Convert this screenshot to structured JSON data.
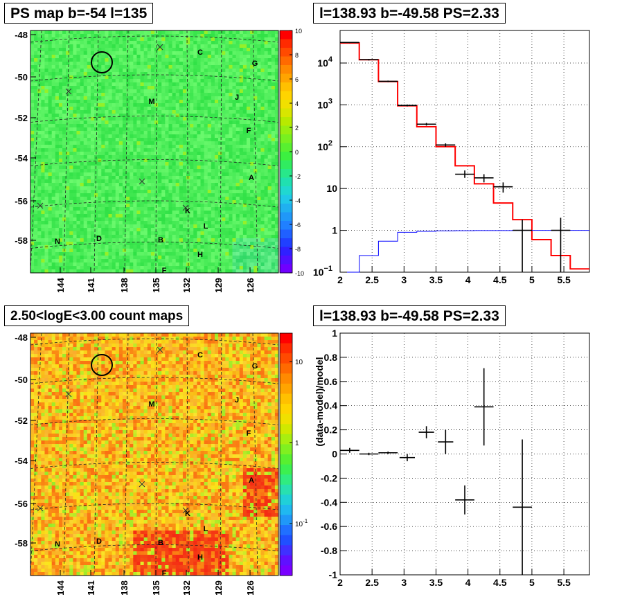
{
  "chart_data": [
    {
      "type": "heatmap",
      "title": "PS map b=-54 l=135",
      "y_ticks": [
        "-48",
        "-50",
        "-52",
        "-54",
        "-56",
        "-58"
      ],
      "x_ticks": [
        "144",
        "141",
        "138",
        "135",
        "132",
        "129",
        "126"
      ],
      "colorbar": {
        "min": -10,
        "max": 10,
        "ticks": [
          "10",
          "8",
          "6",
          "4",
          "2",
          "0",
          "-2",
          "-4",
          "-6",
          "-8",
          "-10"
        ]
      },
      "labels": [
        "C",
        "G",
        "J",
        "M",
        "F",
        "A",
        "K",
        "L",
        "N",
        "D",
        "B",
        "H",
        "F"
      ],
      "colors": {
        "base": "#2fe34c",
        "low": "#7a00ff",
        "high": "#ff0000"
      }
    },
    {
      "type": "line",
      "title": "l=138.93 b=-49.58 PS=2.33",
      "log_y": true,
      "xlim": [
        2,
        5.9
      ],
      "ylim": [
        0.1,
        60000
      ],
      "x_ticks": [
        "2",
        "2.5",
        "3",
        "3.5",
        "4",
        "4.5",
        "5",
        "5.5"
      ],
      "y_ticks": [
        {
          "v": 10000,
          "base": "10",
          "exp": "4"
        },
        {
          "v": 1000,
          "base": "10",
          "exp": "3"
        },
        {
          "v": 100,
          "base": "10",
          "exp": "2"
        },
        {
          "v": 10,
          "base": "10",
          "exp": ""
        },
        {
          "v": 1,
          "base": "1",
          "exp": ""
        },
        {
          "v": 0.1,
          "base": "10",
          "exp": "−1"
        }
      ],
      "series": [
        {
          "color": "#ff0000",
          "edges": [
            2.0,
            2.3,
            2.6,
            2.9,
            3.2,
            3.5,
            3.8,
            4.1,
            4.4,
            4.7,
            5.0,
            5.3,
            5.6,
            5.9
          ],
          "values": [
            30000,
            12000,
            3600,
            950,
            300,
            100,
            35,
            13,
            4.5,
            1.8,
            0.6,
            0.25,
            0.12
          ]
        },
        {
          "color": "#0000ff",
          "edges": [
            2.0,
            2.3,
            2.6,
            2.9,
            3.2,
            3.5,
            3.8,
            4.1,
            4.4,
            4.7,
            5.0,
            5.3,
            5.6,
            5.9
          ],
          "values": [
            0.1,
            0.25,
            0.55,
            0.9,
            0.95,
            0.97,
            0.98,
            0.99,
            0.99,
            1.0,
            1.0,
            1.0,
            1.0
          ]
        },
        {
          "color": "#000000",
          "points": [
            {
              "x": 2.15,
              "y": 31000,
              "xerr": 0.15,
              "ylo": 30000,
              "yhi": 32000
            },
            {
              "x": 2.45,
              "y": 12000,
              "xerr": 0.15,
              "ylo": 11500,
              "yhi": 12500
            },
            {
              "x": 2.75,
              "y": 3650,
              "xerr": 0.15,
              "ylo": 3500,
              "yhi": 3800
            },
            {
              "x": 3.05,
              "y": 970,
              "xerr": 0.15,
              "ylo": 920,
              "yhi": 1020
            },
            {
              "x": 3.35,
              "y": 345,
              "xerr": 0.15,
              "ylo": 320,
              "yhi": 370
            },
            {
              "x": 3.65,
              "y": 110,
              "xerr": 0.15,
              "ylo": 100,
              "yhi": 120
            },
            {
              "x": 3.95,
              "y": 22,
              "xerr": 0.15,
              "ylo": 18,
              "yhi": 27
            },
            {
              "x": 4.25,
              "y": 18,
              "xerr": 0.15,
              "ylo": 14,
              "yhi": 22
            },
            {
              "x": 4.55,
              "y": 11,
              "xerr": 0.15,
              "ylo": 8,
              "yhi": 14
            },
            {
              "x": 4.85,
              "y": 1,
              "xerr": 0.15,
              "ylo": 0.1,
              "yhi": 1.8
            },
            {
              "x": 5.45,
              "y": 1,
              "xerr": 0.15,
              "ylo": 0.1,
              "yhi": 2
            }
          ]
        }
      ]
    },
    {
      "type": "heatmap",
      "title": "2.50<logE<3.00 count maps",
      "y_ticks": [
        "-48",
        "-50",
        "-52",
        "-54",
        "-56",
        "-58"
      ],
      "x_ticks": [
        "144",
        "141",
        "138",
        "135",
        "132",
        "129",
        "126"
      ],
      "colorbar": {
        "log": true,
        "ticks": [
          {
            "base": "10",
            "exp": ""
          },
          {
            "base": "1",
            "exp": ""
          },
          {
            "base": "10",
            "exp": "-1"
          }
        ]
      },
      "labels": [
        "C",
        "G",
        "J",
        "M",
        "F",
        "A",
        "K",
        "L",
        "N",
        "D",
        "B",
        "H",
        "F"
      ],
      "colors": {
        "base": "#ff9a1a",
        "low": "#7a00ff",
        "high": "#ff0000"
      }
    },
    {
      "type": "scatter",
      "title": "l=138.93 b=-49.58 PS=2.33",
      "ylabel": "(data-model)/model",
      "xlim": [
        2,
        5.9
      ],
      "ylim": [
        -1,
        1
      ],
      "x_ticks": [
        "2",
        "2.5",
        "3",
        "3.5",
        "4",
        "4.5",
        "5",
        "5.5"
      ],
      "y_ticks": [
        "1",
        "0.8",
        "0.6",
        "0.4",
        "0.2",
        "0",
        "-0.2",
        "-0.4",
        "-0.6",
        "-0.8",
        "-1"
      ],
      "points": [
        {
          "x": 2.15,
          "y": 0.03,
          "xerr": 0.15,
          "yerr": 0.02
        },
        {
          "x": 2.45,
          "y": 0.0,
          "xerr": 0.15,
          "yerr": 0.01
        },
        {
          "x": 2.75,
          "y": 0.01,
          "xerr": 0.15,
          "yerr": 0.01
        },
        {
          "x": 3.05,
          "y": -0.03,
          "xerr": 0.12,
          "yerr": 0.03
        },
        {
          "x": 3.35,
          "y": 0.18,
          "xerr": 0.12,
          "yerr": 0.05
        },
        {
          "x": 3.65,
          "y": 0.1,
          "xerr": 0.12,
          "yerr": 0.1
        },
        {
          "x": 3.95,
          "y": -0.38,
          "xerr": 0.15,
          "yerr": 0.12
        },
        {
          "x": 4.25,
          "y": 0.39,
          "xerr": 0.15,
          "yerr": 0.32
        },
        {
          "x": 4.85,
          "y": -0.44,
          "xerr": 0.15,
          "yerr": 0.56
        }
      ]
    }
  ]
}
